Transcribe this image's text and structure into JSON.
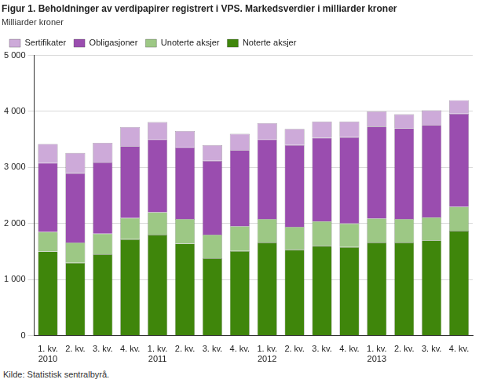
{
  "chart_data": {
    "type": "bar",
    "title": "Figur 1. Beholdninger av verdipapirer registrert i VPS. Markedsverdier i milliarder kroner",
    "subtitle": "Milliarder kroner",
    "source": "Kilde: Statistisk sentralbyrå.",
    "categories": [
      "1. kv.\n2010",
      "2. kv.",
      "3. kv.",
      "4. kv.",
      "1. kv.\n2011",
      "2. kv.",
      "3. kv.",
      "4. kv.",
      "1. kv.\n2012",
      "2. kv.",
      "3. kv.",
      "4. kv.",
      "1. kv.\n2013",
      "2. kv.",
      "3. kv.",
      "4. kv."
    ],
    "series": [
      {
        "name": "Noterte aksjer",
        "color": "#3f860b",
        "values": [
          1500,
          1300,
          1450,
          1720,
          1800,
          1640,
          1380,
          1510,
          1660,
          1530,
          1600,
          1580,
          1660,
          1660,
          1700,
          1870
        ]
      },
      {
        "name": "Unoterte aksjer",
        "color": "#9dc885",
        "values": [
          350,
          360,
          370,
          380,
          400,
          440,
          420,
          440,
          420,
          410,
          440,
          420,
          430,
          420,
          410,
          430
        ]
      },
      {
        "name": "Obligasjoner",
        "color": "#9a4daf",
        "values": [
          1230,
          1240,
          1270,
          1280,
          1300,
          1280,
          1320,
          1360,
          1420,
          1460,
          1490,
          1540,
          1640,
          1620,
          1650,
          1660
        ]
      },
      {
        "name": "Sertifikater",
        "color": "#cdaad9",
        "values": [
          340,
          360,
          350,
          340,
          310,
          290,
          280,
          290,
          290,
          290,
          290,
          280,
          270,
          250,
          260,
          240
        ]
      }
    ],
    "stacked": true,
    "ylim": [
      0,
      5000
    ],
    "yticks": [
      0,
      {
        "value": 1000,
        "label": "1 000"
      },
      {
        "value": 2000,
        "label": "2 000"
      },
      {
        "value": 3000,
        "label": "3 000"
      },
      {
        "value": 4000,
        "label": "4 000"
      },
      {
        "value": 5000,
        "label": "5 000"
      }
    ],
    "grid": true,
    "legend": "upper left"
  }
}
